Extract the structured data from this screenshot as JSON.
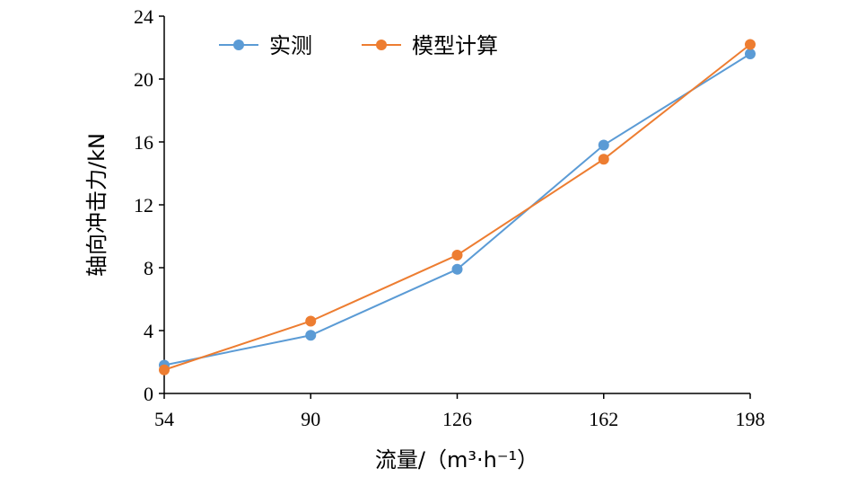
{
  "chart_data": {
    "type": "line",
    "title": "",
    "xlabel": "流量/（m³·h⁻¹）",
    "ylabel": "轴向冲击力/kN",
    "categories": [
      "54",
      "90",
      "126",
      "162",
      "198"
    ],
    "x": [
      54,
      90,
      126,
      162,
      198
    ],
    "ylim": [
      0,
      24
    ],
    "yticks": [
      "0",
      "4",
      "8",
      "12",
      "16",
      "20",
      "24"
    ],
    "grid": false,
    "legend_position": "top",
    "series": [
      {
        "name": "实测",
        "color": "#5b9bd5",
        "values": [
          1.8,
          3.7,
          7.9,
          15.8,
          21.6
        ]
      },
      {
        "name": "模型计算",
        "color": "#ed7d31",
        "values": [
          1.5,
          4.6,
          8.8,
          14.9,
          22.2
        ]
      }
    ]
  }
}
